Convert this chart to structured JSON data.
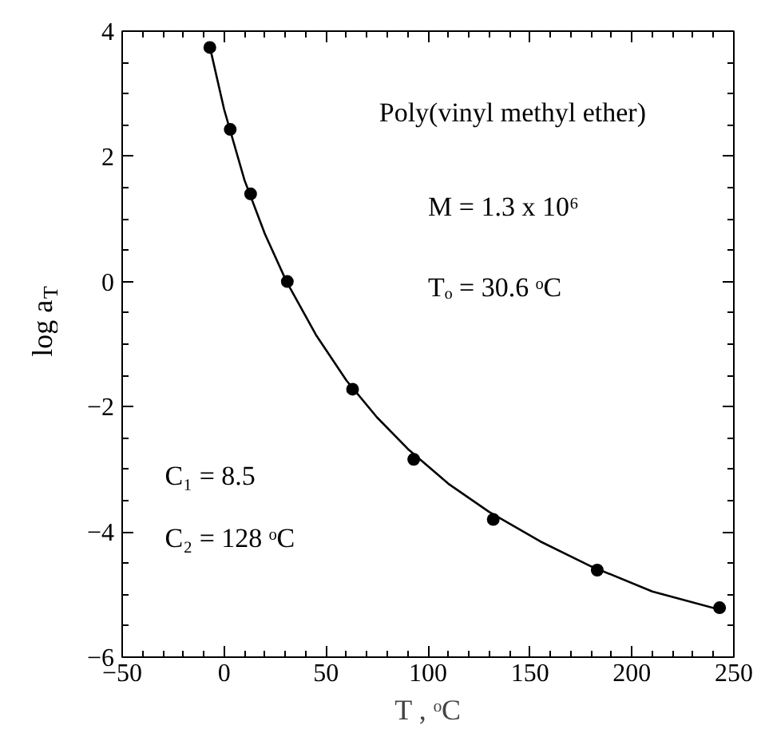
{
  "chart_data": {
    "type": "scatter",
    "xlabel": "T , ᵒC",
    "ylabel": "log a$_{T}$",
    "xlim": [
      -50,
      250
    ],
    "xticks": [
      -50,
      0,
      50,
      100,
      150,
      200,
      250
    ],
    "ylim": [
      -6,
      4
    ],
    "yticks": [
      -6,
      -4,
      -2,
      0,
      2,
      4
    ],
    "grid": false,
    "marker": "circle",
    "series": [
      {
        "color": "#000000",
        "x": [
          -7,
          3,
          13,
          31,
          63,
          93,
          132,
          183,
          243
        ],
        "values": [
          3.74,
          2.43,
          1.4,
          0.0,
          -1.72,
          -2.84,
          -3.8,
          -4.61,
          -5.21
        ]
      },
      {
        "type": "line",
        "color": "#000000",
        "line_style": "solid",
        "marker": "none",
        "x": [
          -7,
          0,
          10,
          20,
          30.6,
          45,
          60,
          75,
          90,
          110,
          130,
          155,
          180,
          210,
          243
        ],
        "values": [
          3.75,
          2.75,
          1.62,
          0.76,
          0.0,
          -0.85,
          -1.58,
          -2.17,
          -2.67,
          -3.23,
          -3.68,
          -4.15,
          -4.55,
          -4.95,
          -5.24
        ]
      }
    ],
    "annotations": [
      "Poly(vinyl methyl ether)",
      "M = 1.3 x 10⁶",
      "Tₒ = 30.6 ᵒC",
      "C₁ = 8.5",
      "C₂ = 128 ᵒC"
    ]
  }
}
